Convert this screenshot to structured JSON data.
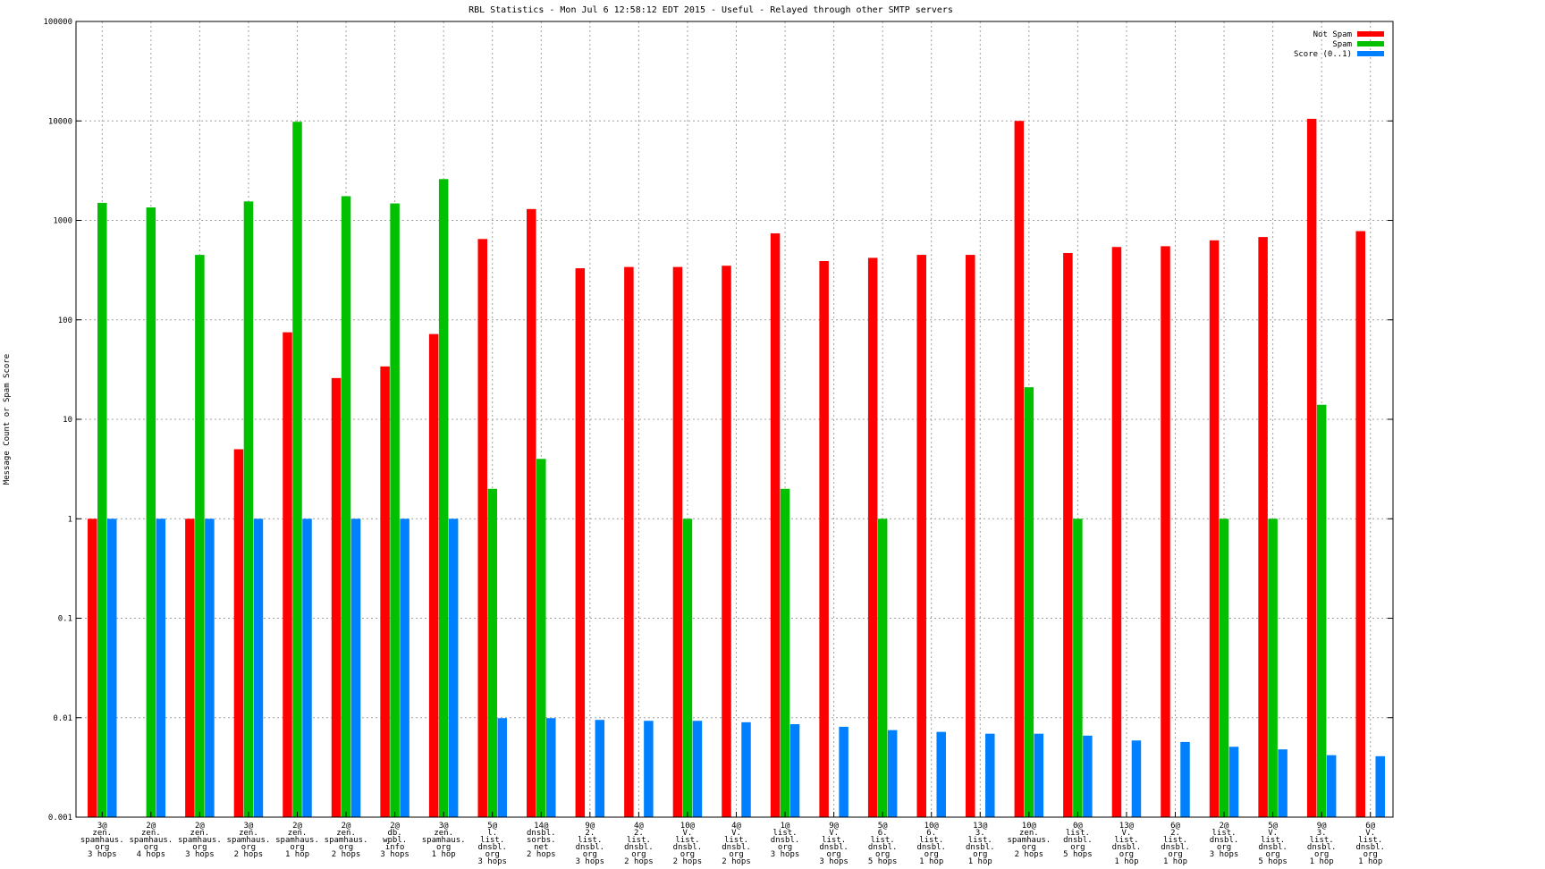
{
  "chart_data": {
    "type": "bar",
    "title": "RBL Statistics - Mon Jul  6 12:58:12 EDT 2015 - Useful - Relayed through other SMTP servers",
    "xlabel": "",
    "ylabel": "Message Count or Spam Score",
    "yscale": "log",
    "ylim": [
      0.001,
      100000
    ],
    "yticks": [
      "0.001",
      "0.01",
      "0.1",
      "1",
      "10",
      "100",
      "1000",
      "10000",
      "100000"
    ],
    "grid": true,
    "legend_position": "top-right",
    "categories": [
      [
        "3@",
        "zen.",
        "spamhaus.",
        "org",
        "3 hops"
      ],
      [
        "2@",
        "zen.",
        "spamhaus.",
        "org",
        "4 hops"
      ],
      [
        "2@",
        "zen.",
        "spamhaus.",
        "org",
        "3 hops"
      ],
      [
        "3@",
        "zen.",
        "spamhaus.",
        "org",
        "2 hops"
      ],
      [
        "2@",
        "zen.",
        "spamhaus.",
        "org",
        "1 hop"
      ],
      [
        "2@",
        "zen.",
        "spamhaus.",
        "org",
        "2 hops"
      ],
      [
        "2@",
        "db.",
        "wpbl.",
        "info",
        "3 hops"
      ],
      [
        "3@",
        "zen.",
        "spamhaus.",
        "org",
        "1 hop"
      ],
      [
        "5@",
        "l.",
        "list.",
        "dnsbl.",
        "org",
        "3 hops"
      ],
      [
        "14@",
        "dnsbl.",
        "sorbs.",
        "net",
        "2 hops"
      ],
      [
        "9@",
        "2.",
        "list.",
        "dnsbl.",
        "org",
        "3 hops"
      ],
      [
        "4@",
        "2.",
        "list.",
        "dnsbl.",
        "org",
        "2 hops"
      ],
      [
        "10@",
        "V.",
        "list.",
        "dnsbl.",
        "org",
        "2 hops"
      ],
      [
        "4@",
        "V.",
        "list.",
        "dnsbl.",
        "org",
        "2 hops"
      ],
      [
        "1@",
        "list.",
        "dnsbl.",
        "org",
        "3 hops"
      ],
      [
        "9@",
        "V.",
        "list.",
        "dnsbl.",
        "org",
        "3 hops"
      ],
      [
        "5@",
        "6.",
        "list.",
        "dnsbl.",
        "org",
        "5 hops"
      ],
      [
        "10@",
        "6.",
        "list.",
        "dnsbl.",
        "org",
        "1 hop"
      ],
      [
        "13@",
        "3.",
        "list.",
        "dnsbl.",
        "org",
        "1 hop"
      ],
      [
        "10@",
        "zen.",
        "spamhaus.",
        "org",
        "2 hops"
      ],
      [
        "0@",
        "list.",
        "dnsbl.",
        "org",
        "5 hops"
      ],
      [
        "13@",
        "V.",
        "list.",
        "dnsbl.",
        "org",
        "1 hop"
      ],
      [
        "6@",
        "2.",
        "list.",
        "dnsbl.",
        "org",
        "1 hop"
      ],
      [
        "2@",
        "list.",
        "dnsbl.",
        "org",
        "3 hops"
      ],
      [
        "5@",
        "V.",
        "list.",
        "dnsbl.",
        "org",
        "5 hops"
      ],
      [
        "9@",
        "3.",
        "list.",
        "dnsbl.",
        "org",
        "1 hop"
      ],
      [
        "6@",
        "V.",
        "list.",
        "dnsbl.",
        "org",
        "1 hop"
      ]
    ],
    "series": [
      {
        "name": "Not Spam",
        "color": "#ff0000",
        "values": [
          1,
          null,
          1,
          5,
          75,
          26,
          34,
          72,
          650,
          1300,
          330,
          340,
          340,
          350,
          740,
          390,
          420,
          450,
          450,
          10000,
          470,
          540,
          550,
          630,
          680,
          10500,
          780
        ]
      },
      {
        "name": "Spam",
        "color": "#00c000",
        "values": [
          1500,
          1350,
          450,
          1550,
          9800,
          1750,
          1480,
          2600,
          2,
          4,
          null,
          null,
          1,
          null,
          2,
          null,
          1,
          null,
          null,
          21,
          1,
          null,
          null,
          1,
          1,
          14,
          null
        ]
      },
      {
        "name": "Score (0..1)",
        "color": "#0080ff",
        "values": [
          1,
          1,
          1,
          1,
          1,
          1,
          1,
          1,
          0.0099,
          0.0099,
          0.0095,
          0.0093,
          0.0093,
          0.009,
          0.0086,
          0.0081,
          0.0075,
          0.0072,
          0.0069,
          0.0069,
          0.0066,
          0.0059,
          0.0057,
          0.0051,
          0.0048,
          0.0042,
          0.0041
        ]
      }
    ]
  }
}
